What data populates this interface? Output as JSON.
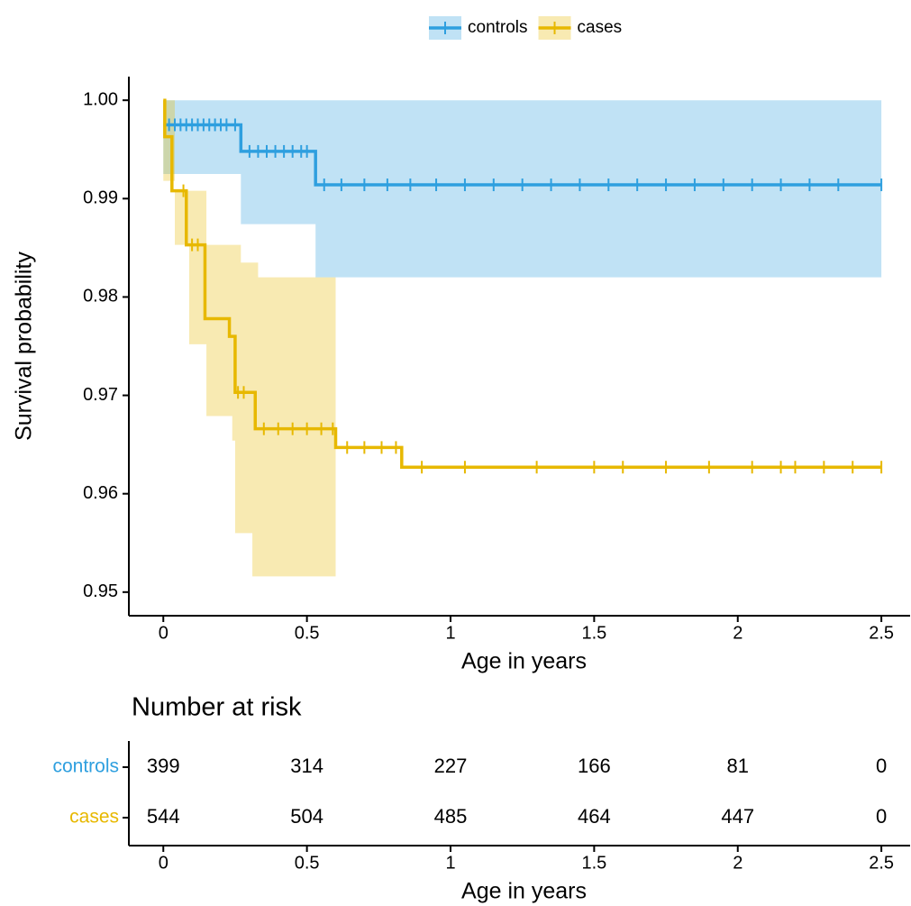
{
  "chart_data": [
    {
      "type": "survival",
      "ylabel": "Survival probability",
      "xlabel": "Age in years",
      "xlim": [
        -0.12,
        2.6
      ],
      "ylim": [
        0.9476,
        1.0024
      ],
      "xticks": [
        0,
        0.5,
        1,
        1.5,
        2,
        2.5
      ],
      "yticks": [
        0.95,
        0.96,
        0.97,
        0.98,
        0.99,
        {
          "value": 1,
          "label": "1.00"
        }
      ],
      "legend": "top",
      "series": [
        {
          "name": "controls",
          "color": "#2E9FDF",
          "x": [
            0,
            0.27,
            0.53,
            2.5
          ],
          "values": [
            0.9975,
            0.9948,
            0.9914,
            0.9914
          ],
          "band": {
            "x": [
              0,
              0.27,
              0.53,
              2.5
            ],
            "lower": [
              0.9925,
              0.9874,
              0.982,
              0.982
            ],
            "upper": [
              1,
              1,
              1,
              1
            ]
          },
          "censor_x": [
            0.02,
            0.04,
            0.06,
            0.08,
            0.1,
            0.12,
            0.14,
            0.16,
            0.18,
            0.2,
            0.22,
            0.25,
            0.3,
            0.33,
            0.36,
            0.39,
            0.42,
            0.45,
            0.48,
            0.5,
            0.56,
            0.62,
            0.7,
            0.78,
            0.86,
            0.95,
            1.05,
            1.15,
            1.25,
            1.35,
            1.45,
            1.55,
            1.65,
            1.75,
            1.85,
            1.95,
            2.05,
            2.15,
            2.25,
            2.35,
            2.5
          ],
          "censor_values": [
            0.9975,
            0.9975,
            0.9975,
            0.9975,
            0.9975,
            0.9975,
            0.9975,
            0.9975,
            0.9975,
            0.9975,
            0.9975,
            0.9975,
            0.9948,
            0.9948,
            0.9948,
            0.9948,
            0.9948,
            0.9948,
            0.9948,
            0.9948,
            0.9914,
            0.9914,
            0.9914,
            0.9914,
            0.9914,
            0.9914,
            0.9914,
            0.9914,
            0.9914,
            0.9914,
            0.9914,
            0.9914,
            0.9914,
            0.9914,
            0.9914,
            0.9914,
            0.9914,
            0.9914,
            0.9914,
            0.9914,
            0.9914
          ]
        },
        {
          "name": "cases",
          "color": "#E7B800",
          "x": [
            0,
            0.005,
            0.03,
            0.08,
            0.145,
            0.23,
            0.25,
            0.32,
            0.6,
            0.83,
            2.5
          ],
          "values": [
            1,
            0.9963,
            0.9908,
            0.9853,
            0.9778,
            0.976,
            0.9703,
            0.9666,
            0.9647,
            0.9627,
            0.9627
          ],
          "band": {
            "x": [
              0,
              0.04,
              0.09,
              0.15,
              0.24,
              0.25,
              0.27,
              0.31,
              0.33,
              0.6
            ],
            "upper": [
              1,
              0.9908,
              0.9908,
              0.9853,
              0.9853,
              0.9853,
              0.9835,
              0.9835,
              0.982,
              0.982
            ],
            "lower": [
              0.9918,
              0.9853,
              0.9752,
              0.9679,
              0.9654,
              0.956,
              0.956,
              0.9516,
              0.9516,
              0.9516
            ]
          },
          "censor_x": [
            0.07,
            0.1,
            0.12,
            0.26,
            0.28,
            0.35,
            0.4,
            0.45,
            0.5,
            0.55,
            0.59,
            0.64,
            0.7,
            0.76,
            0.81,
            0.9,
            1.05,
            1.3,
            1.5,
            1.6,
            1.75,
            1.9,
            2.05,
            2.15,
            2.2,
            2.3,
            2.4,
            2.5
          ],
          "censor_values": [
            0.9908,
            0.9853,
            0.9853,
            0.9703,
            0.9703,
            0.9666,
            0.9666,
            0.9666,
            0.9666,
            0.9666,
            0.9666,
            0.9647,
            0.9647,
            0.9647,
            0.9647,
            0.9627,
            0.9627,
            0.9627,
            0.9627,
            0.9627,
            0.9627,
            0.9627,
            0.9627,
            0.9627,
            0.9627,
            0.9627,
            0.9627,
            0.9627
          ]
        }
      ]
    },
    {
      "type": "risk_table",
      "title": "Number at risk",
      "xlabel": "Age in years",
      "xlim": [
        -0.12,
        2.6
      ],
      "xticks": [
        0,
        0.5,
        1,
        1.5,
        2,
        2.5
      ],
      "series": [
        {
          "name": "controls",
          "color": "#2E9FDF",
          "values": [
            399,
            314,
            227,
            166,
            81,
            0
          ]
        },
        {
          "name": "cases",
          "color": "#E7B800",
          "values": [
            544,
            504,
            485,
            464,
            447,
            0
          ]
        }
      ]
    }
  ]
}
